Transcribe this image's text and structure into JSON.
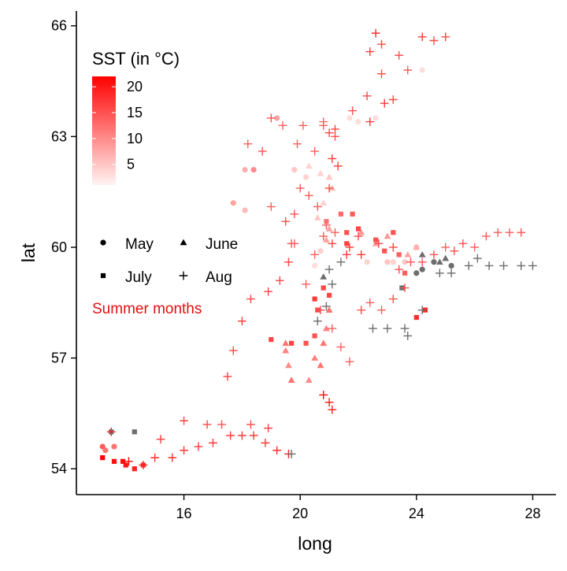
{
  "chart_data": {
    "type": "scatter",
    "xlabel": "long",
    "ylabel": "lat",
    "x_ticks": [
      16,
      20,
      24,
      28
    ],
    "y_ticks": [
      54,
      57,
      60,
      63,
      66
    ],
    "xlim": [
      12.3,
      28.8
    ],
    "ylim": [
      53.3,
      66.4
    ],
    "grid": false,
    "colors": {
      "na_point": "#6d6d6d",
      "low": "#fff4f2",
      "high": "#ff0000",
      "annotation": "#e01010"
    },
    "legend_color": {
      "title": "SST (in °C)",
      "ticks": [
        5,
        10,
        15,
        20
      ],
      "range": [
        1,
        22
      ],
      "placement": "top-left"
    },
    "legend_shape": {
      "placement": "left",
      "entries": [
        {
          "label": "May",
          "shape": "circle"
        },
        {
          "label": "June",
          "shape": "triangle"
        },
        {
          "label": "July",
          "shape": "square"
        },
        {
          "label": "Aug",
          "shape": "plus"
        }
      ]
    },
    "annotation": "Summer months",
    "series": [
      {
        "label": "May",
        "shape": "circle",
        "points": [
          [
            13.2,
            54.6,
            14
          ],
          [
            13.3,
            54.5,
            12
          ],
          [
            13.6,
            54.6,
            12
          ],
          [
            17.7,
            61.2,
            8
          ],
          [
            18.1,
            62.1,
            7
          ],
          [
            18.1,
            61.0,
            6
          ],
          [
            18.4,
            62.1,
            10
          ],
          [
            19.2,
            63.5,
            8
          ],
          [
            19.8,
            62.1,
            5
          ],
          [
            20.2,
            61.9,
            4
          ],
          [
            20.5,
            59.5,
            3
          ],
          [
            21.7,
            63.5,
            3
          ],
          [
            22.0,
            63.4,
            3
          ],
          [
            22.6,
            63.5,
            3
          ],
          [
            22.3,
            59.6,
            4
          ],
          [
            23.0,
            59.6,
            5
          ],
          [
            23.2,
            59.6,
            4
          ],
          [
            23.6,
            59.6,
            5
          ],
          [
            24.0,
            59.3,
            null
          ],
          [
            24.2,
            59.4,
            null
          ],
          [
            24.6,
            59.6,
            null
          ],
          [
            25.2,
            59.5,
            null
          ],
          [
            24.2,
            64.8,
            3
          ],
          [
            24.0,
            60.0,
            6
          ],
          [
            20.7,
            59.9,
            4
          ]
        ]
      },
      {
        "label": "June",
        "shape": "triangle",
        "points": [
          [
            19.5,
            57.4,
            12
          ],
          [
            19.5,
            57.2,
            11
          ],
          [
            19.6,
            56.8,
            10
          ],
          [
            19.7,
            56.4,
            12
          ],
          [
            20.5,
            57.0,
            11
          ],
          [
            20.8,
            57.4,
            12
          ],
          [
            20.9,
            57.8,
            11
          ],
          [
            21.0,
            58.3,
            12
          ],
          [
            20.7,
            56.8,
            12
          ],
          [
            20.3,
            56.4,
            10
          ],
          [
            20.3,
            62.2,
            4
          ],
          [
            20.7,
            62.0,
            4
          ],
          [
            21.0,
            61.9,
            5
          ],
          [
            21.1,
            61.6,
            6
          ],
          [
            20.8,
            61.2,
            4
          ],
          [
            20.6,
            60.8,
            5
          ],
          [
            20.9,
            60.2,
            8
          ],
          [
            21.0,
            60.5,
            8
          ],
          [
            22.1,
            60.4,
            9
          ],
          [
            22.6,
            60.1,
            8
          ],
          [
            23.7,
            59.8,
            8
          ],
          [
            23.0,
            60.3,
            9
          ],
          [
            24.0,
            60.0,
            7
          ],
          [
            24.2,
            59.8,
            null
          ],
          [
            24.8,
            59.6,
            null
          ],
          [
            25.0,
            59.7,
            null
          ],
          [
            20.8,
            59.2,
            null
          ]
        ]
      },
      {
        "label": "July",
        "shape": "square",
        "points": [
          [
            13.2,
            54.3,
            22
          ],
          [
            13.6,
            54.2,
            21
          ],
          [
            14.0,
            54.1,
            20
          ],
          [
            14.3,
            54.0,
            19
          ],
          [
            13.9,
            54.2,
            21
          ],
          [
            14.6,
            54.1,
            18
          ],
          [
            13.5,
            55.0,
            null
          ],
          [
            14.3,
            55.0,
            null
          ],
          [
            19.0,
            57.5,
            16
          ],
          [
            19.7,
            57.4,
            16
          ],
          [
            20.2,
            57.4,
            15
          ],
          [
            20.5,
            57.6,
            15
          ],
          [
            20.5,
            58.6,
            17
          ],
          [
            20.8,
            58.9,
            16
          ],
          [
            20.6,
            58.3,
            16
          ],
          [
            21.0,
            58.7,
            16
          ],
          [
            21.6,
            60.1,
            16
          ],
          [
            22.0,
            60.5,
            16
          ],
          [
            22.6,
            60.2,
            15
          ],
          [
            22.9,
            59.9,
            15
          ],
          [
            23.4,
            59.8,
            14
          ],
          [
            23.6,
            59.3,
            14
          ],
          [
            24.0,
            58.1,
            18
          ],
          [
            24.3,
            58.3,
            19
          ],
          [
            20.9,
            60.7,
            12
          ],
          [
            21.4,
            60.9,
            13
          ],
          [
            21.8,
            60.9,
            14
          ],
          [
            23.2,
            60.4,
            15
          ],
          [
            23.5,
            58.9,
            null
          ],
          [
            21.6,
            60.4,
            15
          ]
        ]
      },
      {
        "label": "Aug",
        "shape": "plus",
        "points": [
          [
            13.5,
            55.0,
            19
          ],
          [
            14.1,
            54.2,
            21
          ],
          [
            14.6,
            54.1,
            19
          ],
          [
            15.0,
            54.3,
            18
          ],
          [
            15.2,
            54.8,
            17
          ],
          [
            15.6,
            54.3,
            18
          ],
          [
            16.0,
            54.5,
            17
          ],
          [
            16.0,
            55.3,
            16
          ],
          [
            16.5,
            54.6,
            17
          ],
          [
            16.8,
            55.2,
            16
          ],
          [
            17.0,
            54.7,
            17
          ],
          [
            17.3,
            55.2,
            15
          ],
          [
            17.6,
            54.9,
            17
          ],
          [
            18.0,
            54.9,
            17
          ],
          [
            18.4,
            54.9,
            17
          ],
          [
            18.8,
            54.7,
            17
          ],
          [
            19.2,
            54.5,
            18
          ],
          [
            19.6,
            54.4,
            19
          ],
          [
            19.7,
            54.4,
            null
          ],
          [
            18.3,
            55.2,
            16
          ],
          [
            18.9,
            55.1,
            16
          ],
          [
            17.5,
            56.5,
            17
          ],
          [
            17.7,
            57.2,
            16
          ],
          [
            18.0,
            58.0,
            17
          ],
          [
            18.3,
            58.6,
            16
          ],
          [
            18.9,
            58.8,
            16
          ],
          [
            19.3,
            59.1,
            16
          ],
          [
            19.6,
            59.6,
            16
          ],
          [
            19.7,
            60.1,
            15
          ],
          [
            19.8,
            60.9,
            15
          ],
          [
            20.0,
            61.6,
            14
          ],
          [
            20.3,
            61.4,
            14
          ],
          [
            20.6,
            61.1,
            14
          ],
          [
            20.8,
            60.3,
            14
          ],
          [
            20.9,
            60.6,
            14
          ],
          [
            21.2,
            60.4,
            14
          ],
          [
            21.0,
            61.6,
            16
          ],
          [
            21.1,
            62.4,
            17
          ],
          [
            21.3,
            62.2,
            17
          ],
          [
            21.0,
            63.1,
            16
          ],
          [
            20.8,
            63.4,
            13
          ],
          [
            21.2,
            63.2,
            16
          ],
          [
            21.8,
            63.7,
            15
          ],
          [
            22.3,
            64.1,
            16
          ],
          [
            22.8,
            64.7,
            16
          ],
          [
            22.4,
            65.3,
            17
          ],
          [
            22.8,
            65.5,
            16
          ],
          [
            22.6,
            65.8,
            18
          ],
          [
            23.4,
            65.2,
            15
          ],
          [
            23.7,
            64.8,
            14
          ],
          [
            24.2,
            65.7,
            17
          ],
          [
            24.6,
            65.6,
            16
          ],
          [
            25.0,
            65.7,
            16
          ],
          [
            22.4,
            63.4,
            17
          ],
          [
            22.9,
            63.9,
            17
          ],
          [
            23.2,
            64.0,
            16
          ],
          [
            18.2,
            62.8,
            14
          ],
          [
            18.7,
            62.6,
            15
          ],
          [
            19.0,
            63.5,
            15
          ],
          [
            19.4,
            63.3,
            14
          ],
          [
            19.9,
            62.8,
            14
          ],
          [
            20.1,
            63.3,
            14
          ],
          [
            20.5,
            62.6,
            14
          ],
          [
            20.8,
            63.3,
            14
          ],
          [
            21.2,
            63.0,
            15
          ],
          [
            19.0,
            61.1,
            14
          ],
          [
            19.5,
            60.7,
            15
          ],
          [
            19.8,
            60.1,
            14
          ],
          [
            20.5,
            59.8,
            14
          ],
          [
            20.2,
            59.0,
            14
          ],
          [
            20.7,
            58.3,
            15
          ],
          [
            21.1,
            57.8,
            14
          ],
          [
            21.4,
            57.3,
            14
          ],
          [
            21.7,
            56.9,
            14
          ],
          [
            22.1,
            58.3,
            15
          ],
          [
            22.4,
            58.5,
            14
          ],
          [
            22.8,
            58.3,
            14
          ],
          [
            23.2,
            58.6,
            15
          ],
          [
            23.6,
            58.9,
            15
          ],
          [
            23.4,
            59.4,
            15
          ],
          [
            23.8,
            59.6,
            15
          ],
          [
            24.2,
            59.6,
            15
          ],
          [
            24.6,
            59.8,
            15
          ],
          [
            25.0,
            60.0,
            14
          ],
          [
            25.3,
            59.9,
            15
          ],
          [
            25.6,
            60.1,
            15
          ],
          [
            26.0,
            60.0,
            14
          ],
          [
            26.4,
            60.3,
            14
          ],
          [
            26.8,
            60.4,
            14
          ],
          [
            27.2,
            60.4,
            14
          ],
          [
            27.6,
            60.4,
            15
          ],
          [
            28.0,
            59.5,
            null
          ],
          [
            27.6,
            59.5,
            null
          ],
          [
            27.0,
            59.5,
            null
          ],
          [
            26.5,
            59.5,
            null
          ],
          [
            26.1,
            59.7,
            null
          ],
          [
            25.8,
            59.5,
            null
          ],
          [
            25.2,
            59.3,
            null
          ],
          [
            24.8,
            59.3,
            null
          ],
          [
            23.6,
            57.8,
            null
          ],
          [
            23.0,
            57.8,
            null
          ],
          [
            22.5,
            57.8,
            null
          ],
          [
            24.2,
            58.3,
            null
          ],
          [
            23.7,
            57.6,
            null
          ],
          [
            20.8,
            56.0,
            21
          ],
          [
            21.0,
            55.8,
            20
          ],
          [
            21.1,
            55.6,
            19
          ],
          [
            20.6,
            58.0,
            null
          ],
          [
            20.9,
            58.4,
            null
          ],
          [
            21.1,
            59.0,
            null
          ],
          [
            21.0,
            59.4,
            null
          ],
          [
            21.4,
            59.6,
            null
          ],
          [
            22.1,
            59.8,
            17
          ],
          [
            21.7,
            60.0,
            17
          ],
          [
            22.0,
            60.3,
            16
          ],
          [
            22.7,
            60.1,
            16
          ],
          [
            23.2,
            60.0,
            16
          ],
          [
            21.6,
            59.8,
            17
          ],
          [
            21.1,
            60.1,
            16
          ]
        ]
      }
    ]
  }
}
